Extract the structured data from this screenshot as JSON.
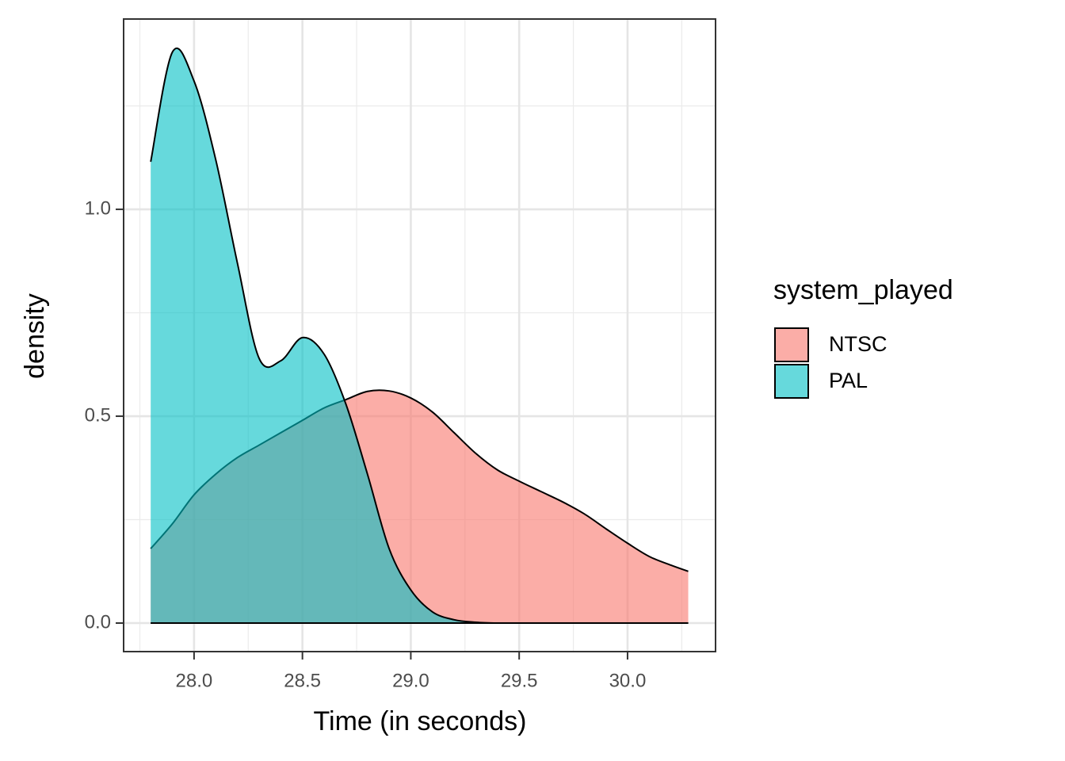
{
  "chart_data": {
    "type": "density",
    "x_label": "Time (in seconds)",
    "y_label": "density",
    "legend_title": "system_played",
    "legend_position": "right",
    "grid": true,
    "opacity": 0.6,
    "x": [
      27.8,
      27.9,
      28.0,
      28.1,
      28.2,
      28.3,
      28.4,
      28.5,
      28.6,
      28.7,
      28.8,
      28.9,
      29.0,
      29.1,
      29.2,
      29.3,
      29.4,
      29.5,
      29.6,
      29.7,
      29.8,
      29.9,
      30.0,
      30.1,
      30.2,
      30.28
    ],
    "series": [
      {
        "name": "NTSC",
        "color": "#F8766D",
        "values": [
          0.18,
          0.24,
          0.31,
          0.36,
          0.4,
          0.43,
          0.46,
          0.49,
          0.52,
          0.54,
          0.56,
          0.561,
          0.544,
          0.51,
          0.46,
          0.41,
          0.37,
          0.343,
          0.318,
          0.293,
          0.264,
          0.228,
          0.193,
          0.161,
          0.14,
          0.125
        ]
      },
      {
        "name": "PAL",
        "color": "#00BFC4",
        "values": [
          1.115,
          1.38,
          1.31,
          1.12,
          0.87,
          0.64,
          0.634,
          0.69,
          0.65,
          0.53,
          0.36,
          0.18,
          0.08,
          0.027,
          0.008,
          0.002,
          0,
          0,
          0,
          0,
          0,
          0,
          0,
          0,
          0,
          0
        ]
      }
    ],
    "xlim": [
      27.675,
      30.406
    ],
    "ylim": [
      -0.069,
      1.46
    ],
    "xticks": [
      {
        "value": 28.0,
        "label": "28.0"
      },
      28.5,
      {
        "value": 29.0,
        "label": "29.0"
      },
      29.5,
      {
        "value": 30.0,
        "label": "30.0"
      }
    ],
    "yticks": [
      {
        "value": 0,
        "label": "0.0"
      },
      0.5,
      {
        "value": 1,
        "label": "1.0"
      }
    ],
    "xminor": [
      27.75,
      28.25,
      28.75,
      29.25,
      29.75,
      30.25
    ],
    "yminor": [
      0.25,
      0.75,
      1.25
    ]
  }
}
